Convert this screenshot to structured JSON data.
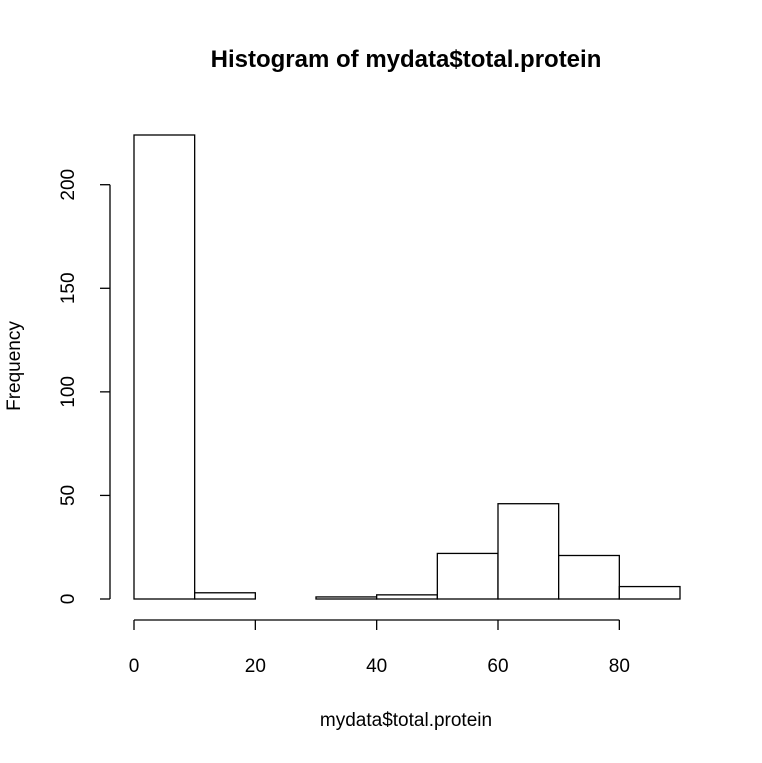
{
  "chart_data": {
    "type": "bar",
    "title": "Histogram of mydata$total.protein",
    "xlabel": "mydata$total.protein",
    "ylabel": "Frequency",
    "bins": [
      {
        "start": 0,
        "end": 10,
        "count": 224
      },
      {
        "start": 10,
        "end": 20,
        "count": 3
      },
      {
        "start": 20,
        "end": 30,
        "count": 0
      },
      {
        "start": 30,
        "end": 40,
        "count": 1
      },
      {
        "start": 40,
        "end": 50,
        "count": 2
      },
      {
        "start": 50,
        "end": 60,
        "count": 22
      },
      {
        "start": 60,
        "end": 70,
        "count": 46
      },
      {
        "start": 70,
        "end": 80,
        "count": 21
      },
      {
        "start": 80,
        "end": 90,
        "count": 6
      }
    ],
    "x_ticks": [
      0,
      20,
      40,
      60,
      80
    ],
    "y_ticks": [
      0,
      50,
      100,
      150,
      200
    ],
    "xlim": [
      0,
      90
    ],
    "ylim": [
      0,
      224
    ],
    "grid": false,
    "colors": {
      "bar_fill": "#ffffff",
      "bar_stroke": "#000000"
    }
  }
}
